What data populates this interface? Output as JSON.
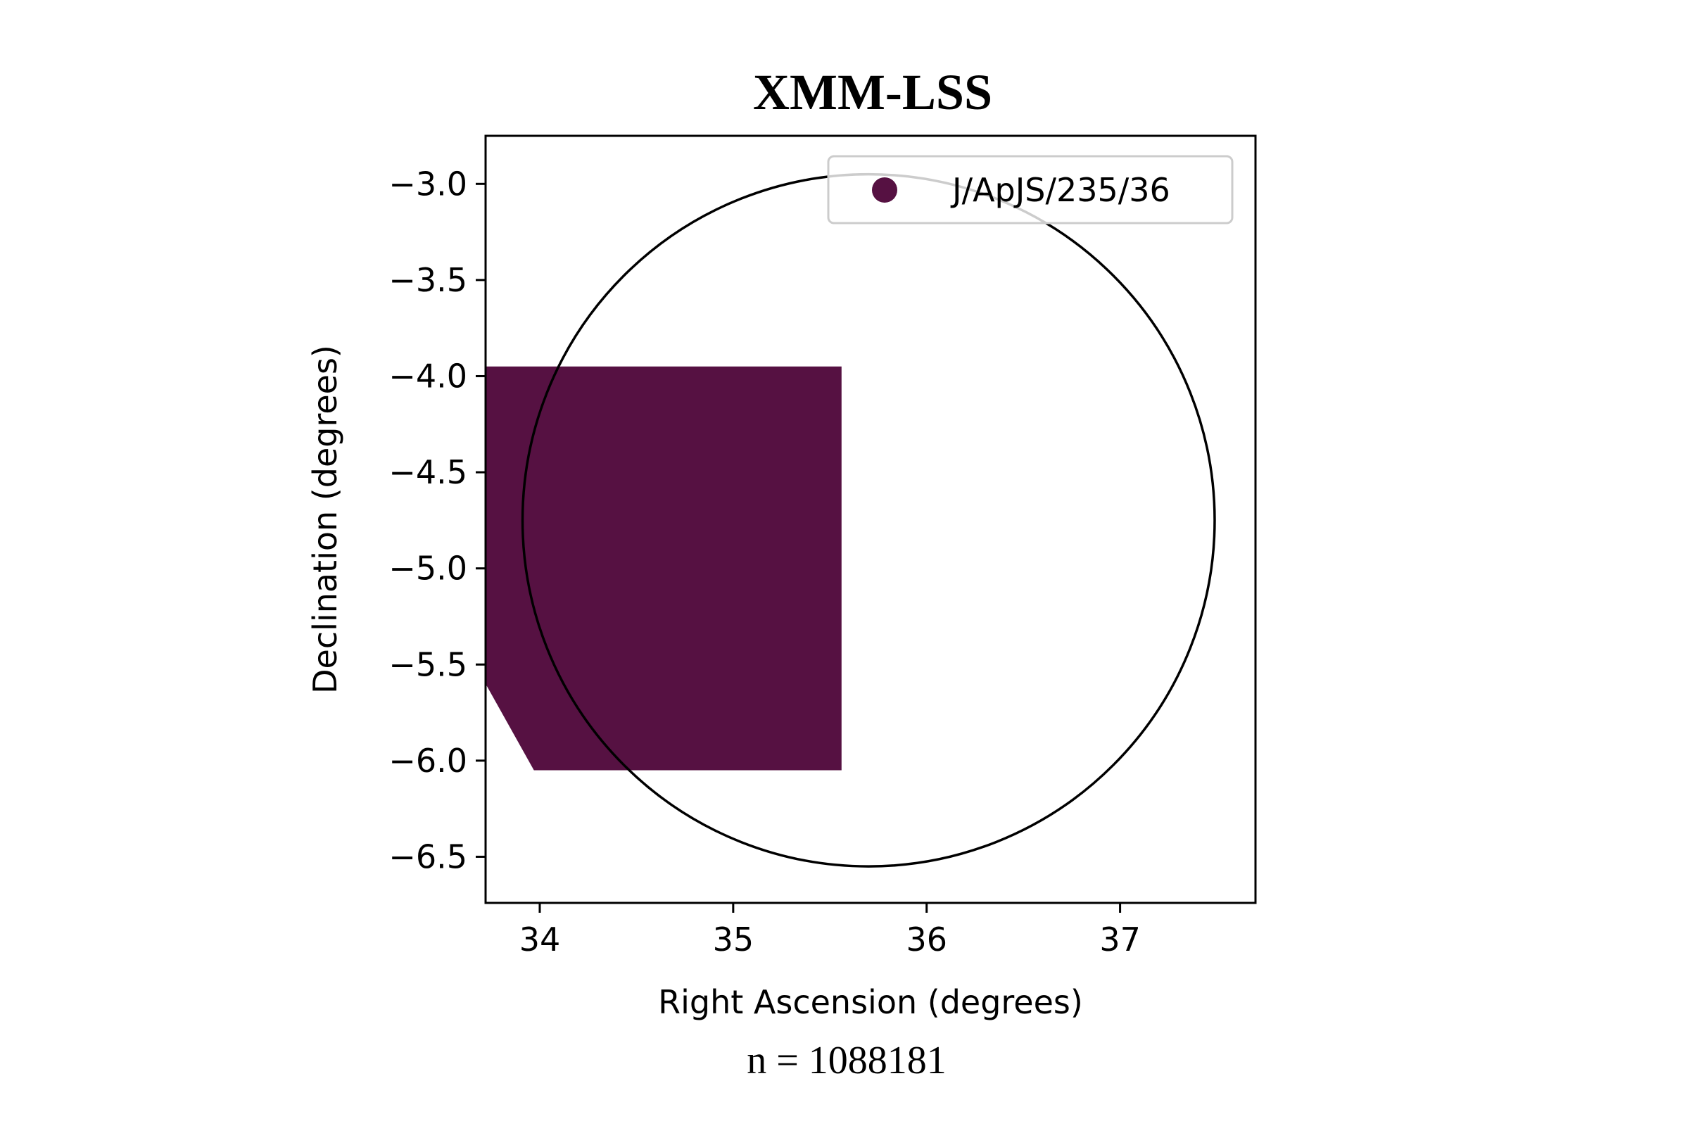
{
  "chart_data": {
    "type": "scatter",
    "title": "XMM-LSS",
    "xlabel": "Right Ascension (degrees)",
    "ylabel": "Declination (degrees)",
    "xlim": [
      33.72,
      37.7
    ],
    "ylim": [
      -6.74,
      -2.75
    ],
    "xticks": [
      34,
      35,
      36,
      37
    ],
    "xtick_labels": [
      "34",
      "35",
      "36",
      "37"
    ],
    "yticks": [
      -3.0,
      -3.5,
      -4.0,
      -4.5,
      -5.0,
      -5.5,
      -6.0,
      -6.5
    ],
    "ytick_labels": [
      "−3.0",
      "−3.5",
      "−4.0",
      "−4.5",
      "−5.0",
      "−5.5",
      "−6.0",
      "−6.5"
    ],
    "grid": false,
    "legend_position": "top-right",
    "series": [
      {
        "name": "J/ApJS/235/36",
        "color": "#561142",
        "footprint": [
          [
            33.72,
            -3.95
          ],
          [
            35.56,
            -3.95
          ],
          [
            35.56,
            -6.05
          ],
          [
            33.97,
            -6.05
          ],
          [
            33.72,
            -5.6
          ]
        ]
      }
    ],
    "circle": {
      "ra_center": 35.7,
      "dec_center": -4.75,
      "radius_deg": 1.8,
      "color": "#000000"
    },
    "annotation": "n = 1088181"
  }
}
